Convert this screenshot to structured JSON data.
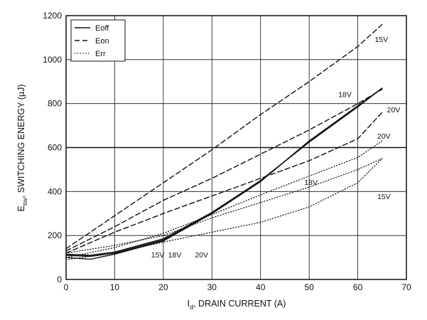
{
  "chart_data": {
    "type": "line",
    "xlabel_prefix": "I",
    "xlabel_sub": "d",
    "xlabel_suffix": ", DRAIN CURRENT (A)",
    "ylabel_prefix": "E",
    "ylabel_sub": "sw",
    "ylabel_suffix": ", SWITCHING ENERGY (µJ)",
    "xlim": [
      0,
      70
    ],
    "ylim": [
      0,
      1200
    ],
    "x_ticks": [
      "0",
      "10",
      "20",
      "30",
      "40",
      "50",
      "60",
      "70"
    ],
    "y_ticks": [
      "0",
      "200",
      "400",
      "600",
      "800",
      "1000",
      "1200"
    ],
    "grid": true,
    "legend_position": "top-left",
    "legend": [
      {
        "label": "Eoff",
        "style": "solid"
      },
      {
        "label": "Eon",
        "style": "dashed"
      },
      {
        "label": "Err",
        "style": "dotted"
      }
    ],
    "series": [
      {
        "kind": "Eoff",
        "voltage": "15V",
        "style": "solid",
        "x": [
          0,
          5,
          10,
          20,
          30,
          40,
          50,
          60,
          65
        ],
        "y": [
          100,
          92,
          115,
          175,
          300,
          445,
          630,
          790,
          870
        ]
      },
      {
        "kind": "Eoff",
        "voltage": "18V",
        "style": "solid",
        "x": [
          0,
          5,
          10,
          20,
          30,
          40,
          50,
          60,
          65
        ],
        "y": [
          110,
          105,
          120,
          180,
          300,
          450,
          625,
          790,
          870
        ]
      },
      {
        "kind": "Eoff",
        "voltage": "20V",
        "style": "solid",
        "x": [
          0,
          5,
          10,
          20,
          30,
          40,
          50,
          60,
          65
        ],
        "y": [
          115,
          110,
          125,
          185,
          305,
          450,
          625,
          785,
          870
        ]
      },
      {
        "kind": "Eon",
        "voltage": "15V",
        "style": "dashed",
        "x": [
          0,
          10,
          20,
          30,
          40,
          50,
          60,
          65
        ],
        "y": [
          140,
          290,
          440,
          590,
          750,
          900,
          1060,
          1160
        ]
      },
      {
        "kind": "Eon",
        "voltage": "18V",
        "style": "dashed",
        "x": [
          0,
          10,
          20,
          30,
          40,
          50,
          60,
          65
        ],
        "y": [
          130,
          240,
          360,
          460,
          570,
          680,
          800,
          865
        ]
      },
      {
        "kind": "Eon",
        "voltage": "20V",
        "style": "dashed",
        "x": [
          0,
          10,
          20,
          30,
          40,
          50,
          60,
          65
        ],
        "y": [
          120,
          215,
          300,
          380,
          460,
          540,
          640,
          760
        ]
      },
      {
        "kind": "Err",
        "voltage": "15V",
        "style": "dotted",
        "x": [
          0,
          10,
          20,
          30,
          40,
          50,
          60,
          65
        ],
        "y": [
          90,
          120,
          170,
          215,
          260,
          330,
          440,
          550
        ]
      },
      {
        "kind": "Err",
        "voltage": "18V",
        "style": "dotted",
        "x": [
          0,
          10,
          20,
          30,
          40,
          50,
          60,
          65
        ],
        "y": [
          120,
          155,
          200,
          280,
          350,
          420,
          500,
          550
        ]
      },
      {
        "kind": "Err",
        "voltage": "20V",
        "style": "dotted",
        "x": [
          0,
          10,
          20,
          30,
          40,
          50,
          60,
          65
        ],
        "y": [
          100,
          145,
          210,
          295,
          385,
          470,
          555,
          630
        ]
      }
    ],
    "annotations": [
      {
        "text": "15V",
        "x": 63.5,
        "y": 1080
      },
      {
        "text": "18V",
        "x": 56,
        "y": 830
      },
      {
        "text": "20V",
        "x": 66,
        "y": 760
      },
      {
        "text": "20V",
        "x": 64,
        "y": 640
      },
      {
        "text": "18V",
        "x": 49,
        "y": 430
      },
      {
        "text": "15V",
        "x": 64,
        "y": 365
      },
      {
        "text": "15V",
        "x": 17.5,
        "y": 100
      },
      {
        "text": "18V",
        "x": 21,
        "y": 100
      },
      {
        "text": "20V",
        "x": 26.5,
        "y": 100
      }
    ]
  }
}
